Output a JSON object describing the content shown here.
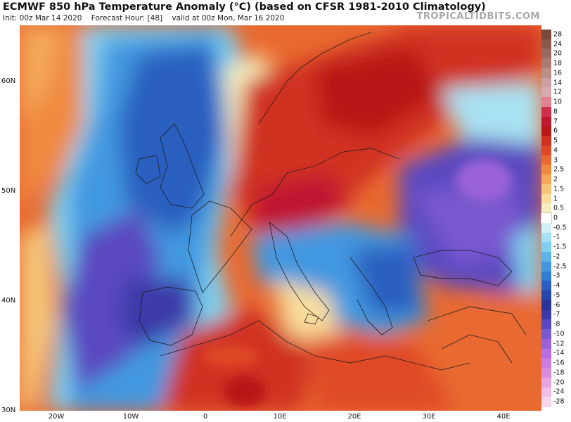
{
  "header": {
    "title": "ECMWF 850 hPa Temperature Anomaly (°C) (based on CFSR 1981-2010 Climatology)",
    "init": "Init: 00z Mar 14 2020",
    "forecast_hour": "Forecast Hour: [48]",
    "valid": "valid at 00z Mon, Mar 16 2020",
    "brand": "TROPICALTIDBITS.COM"
  },
  "axes": {
    "lat_labels": [
      "60N",
      "50N",
      "40N",
      "30N"
    ],
    "lon_labels": [
      "20W",
      "10W",
      "0",
      "10E",
      "20E",
      "30E",
      "40E"
    ]
  },
  "colorbar": {
    "ticks": [
      "28",
      "24",
      "20",
      "18",
      "16",
      "14",
      "12",
      "10",
      "8",
      "7",
      "6",
      "5",
      "4",
      "3",
      "2.5",
      "2",
      "1.5",
      "1",
      "0.5",
      "0",
      "-0.5",
      "-1",
      "-1.5",
      "-2",
      "-2.5",
      "-3",
      "-4",
      "-5",
      "-6",
      "-7",
      "-8",
      "-10",
      "-12",
      "-14",
      "-16",
      "-18",
      "-20",
      "-24",
      "-28"
    ],
    "colors": [
      "#7a4a3a",
      "#8a5a4c",
      "#9a6a5e",
      "#aa7c72",
      "#bb8e88",
      "#cc9fa0",
      "#d8a8b0",
      "#e08090",
      "#d03050",
      "#c01830",
      "#b81818",
      "#d03020",
      "#e04828",
      "#e86a30",
      "#f08a40",
      "#f4a858",
      "#f6c678",
      "#f8dd9c",
      "#f6eebc",
      "#ffffff",
      "#d2f0f6",
      "#a8e2f2",
      "#80cfee",
      "#5cb4e8",
      "#4298e0",
      "#327cd4",
      "#2a5ec0",
      "#2845aa",
      "#2a3498",
      "#3c3aa8",
      "#5a48c0",
      "#7a58d0",
      "#9a62d8",
      "#b86ee0",
      "#cc7ce0",
      "#dc8cdc",
      "#e8a4e0",
      "#f0bee8",
      "#f6d6ee"
    ]
  }
}
